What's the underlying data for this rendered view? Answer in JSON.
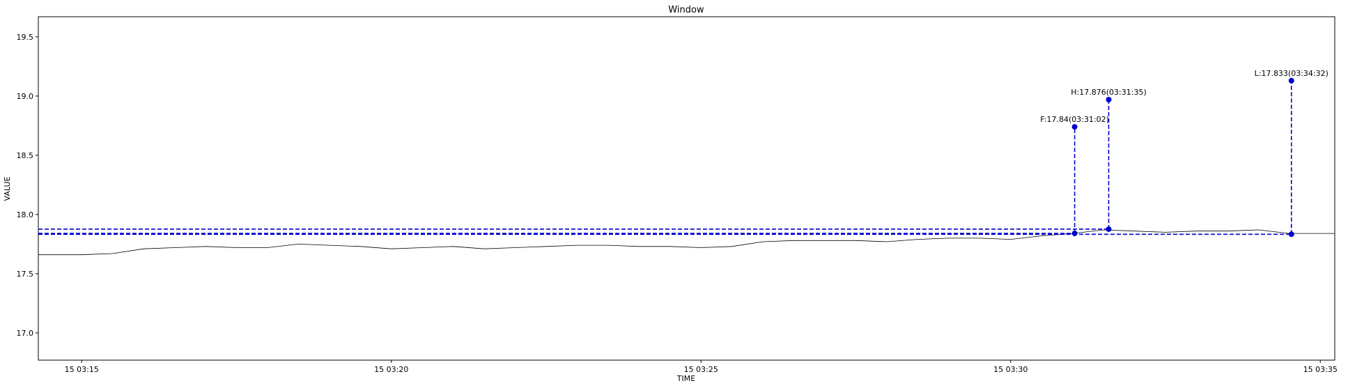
{
  "chart_data": {
    "type": "line",
    "title": "Window",
    "xlabel": "TIME",
    "ylabel": "VALUE",
    "xlim": [
      "15 03:14:18",
      "15 03:35:14"
    ],
    "ylim": [
      16.77,
      19.67
    ],
    "x_ticks": [
      "15 03:15",
      "15 03:20",
      "15 03:25",
      "15 03:30",
      "15 03:35"
    ],
    "y_ticks": [
      "17.0",
      "17.5",
      "18.0",
      "18.5",
      "19.0",
      "19.5"
    ],
    "grid": false,
    "series": [
      {
        "color": "#000000",
        "x": [
          "15 03:14:18",
          "15 03:15:00",
          "15 03:15:30",
          "15 03:16:00",
          "15 03:16:30",
          "15 03:17:00",
          "15 03:17:30",
          "15 03:18:00",
          "15 03:18:30",
          "15 03:19:00",
          "15 03:19:30",
          "15 03:20:00",
          "15 03:20:30",
          "15 03:21:00",
          "15 03:21:30",
          "15 03:22:00",
          "15 03:22:30",
          "15 03:23:00",
          "15 03:23:30",
          "15 03:24:00",
          "15 03:24:30",
          "15 03:25:00",
          "15 03:25:30",
          "15 03:26:00",
          "15 03:26:30",
          "15 03:27:00",
          "15 03:27:30",
          "15 03:28:00",
          "15 03:28:30",
          "15 03:29:00",
          "15 03:29:30",
          "15 03:30:00",
          "15 03:30:30",
          "15 03:31:00",
          "15 03:31:30",
          "15 03:32:00",
          "15 03:32:30",
          "15 03:33:00",
          "15 03:33:30",
          "15 03:34:00",
          "15 03:34:30",
          "15 03:35:00",
          "15 03:35:14"
        ],
        "values": [
          17.66,
          17.66,
          17.67,
          17.71,
          17.72,
          17.73,
          17.72,
          17.72,
          17.75,
          17.74,
          17.73,
          17.71,
          17.72,
          17.73,
          17.71,
          17.72,
          17.73,
          17.74,
          17.74,
          17.73,
          17.73,
          17.72,
          17.73,
          17.77,
          17.78,
          17.78,
          17.78,
          17.77,
          17.79,
          17.8,
          17.8,
          17.79,
          17.82,
          17.84,
          17.87,
          17.86,
          17.85,
          17.86,
          17.86,
          17.87,
          17.84,
          17.84,
          17.84
        ]
      }
    ],
    "reference_lines": [
      {
        "color": "#0000cc",
        "y": 17.84
      },
      {
        "color": "#0000cc",
        "y": 17.876
      },
      {
        "color": "#0000cc",
        "y": 17.833
      }
    ],
    "annotations": [
      {
        "label": "F:17.84(03:31:02)",
        "x": "15 03:31:02",
        "y": 17.84,
        "marker_y": 18.74,
        "color": "#0000cc"
      },
      {
        "label": "H:17.876(03:31:35)",
        "x": "15 03:31:35",
        "y": 17.876,
        "marker_y": 18.97,
        "color": "#0000cc"
      },
      {
        "label": "L:17.833(03:34:32)",
        "x": "15 03:34:32",
        "y": 17.833,
        "marker_y": 19.13,
        "color": "#0000cc"
      }
    ]
  }
}
